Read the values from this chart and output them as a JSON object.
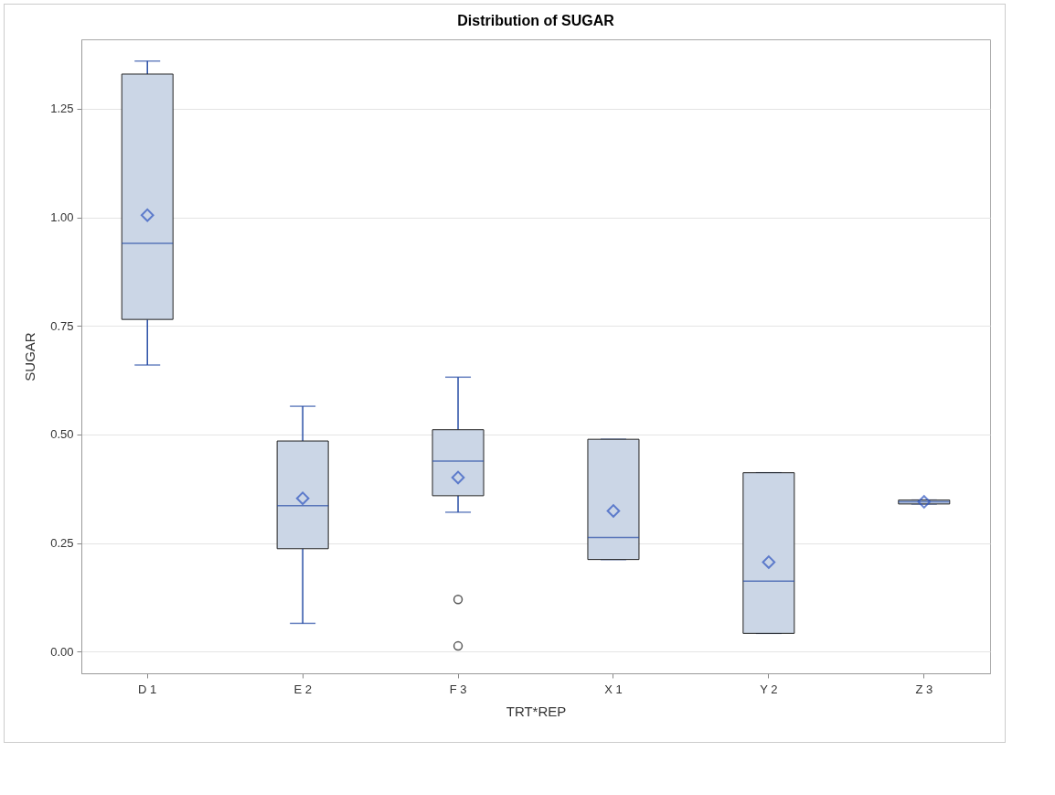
{
  "chart_data": {
    "type": "box",
    "title": "Distribution of SUGAR",
    "xlabel": "TRT*REP",
    "ylabel": "SUGAR",
    "categories": [
      "D 1",
      "E 2",
      "F 3",
      "X 1",
      "Y 2",
      "Z 3"
    ],
    "color": "#cbd6e6",
    "marker": "diamond",
    "grid": "y",
    "ylim": [
      -0.05,
      1.41
    ],
    "yticks": [
      {
        "value": 0,
        "label": "0.00"
      },
      {
        "value": 0.25,
        "label": "0.25"
      },
      {
        "value": 0.5,
        "label": "0.50"
      },
      {
        "value": 0.75,
        "label": "0.75"
      },
      {
        "value": 1,
        "label": "1.00"
      },
      {
        "value": 1.25,
        "label": "1.25"
      }
    ],
    "boxes": [
      {
        "low": 0.66,
        "q1": 0.765,
        "median": 0.94,
        "q3": 1.33,
        "high": 1.36,
        "mean": 1.005
      },
      {
        "low": 0.065,
        "q1": 0.237,
        "median": 0.336,
        "q3": 0.485,
        "high": 0.565,
        "mean": 0.353
      },
      {
        "low": 0.321,
        "q1": 0.359,
        "median": 0.439,
        "q3": 0.511,
        "high": 0.632,
        "mean": 0.401,
        "outliers": [
          0.12,
          0.013
        ]
      },
      {
        "low": 0.212,
        "q1": 0.212,
        "median": 0.263,
        "q3": 0.489,
        "high": 0.489,
        "mean": 0.324
      },
      {
        "low": 0.042,
        "q1": 0.042,
        "median": 0.162,
        "q3": 0.412,
        "high": 0.412,
        "mean": 0.206
      },
      {
        "low": 0.34,
        "q1": 0.34,
        "median": 0.345,
        "q3": 0.349,
        "high": 0.349,
        "mean": 0.345
      }
    ]
  }
}
